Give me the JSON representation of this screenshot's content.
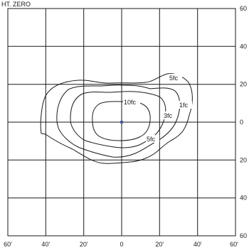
{
  "title": "HT. ZERO",
  "x_tick_labels": [
    "60'",
    "40'",
    "20'",
    "0",
    "20'",
    "40'",
    "60'"
  ],
  "y_tick_labels": [
    "60",
    "40",
    "20",
    "0",
    "20",
    "40",
    "60"
  ],
  "contour_labels": {
    "ten": "10fc",
    "five_top": "5fc",
    "three": "3fc",
    "one": "1fc",
    "five_bottom": "5fc"
  },
  "chart_data": {
    "type": "isofootcandle",
    "grid_step_ft": 20,
    "x_range_ft": [
      -60,
      60
    ],
    "y_range_ft": [
      -60,
      60
    ],
    "levels": [
      "10fc",
      "5fc",
      "3fc",
      "1fc"
    ],
    "center": [
      0,
      0
    ],
    "colors": {
      "line": "#1a1a1a",
      "center_marker": "#3a52b8"
    }
  }
}
